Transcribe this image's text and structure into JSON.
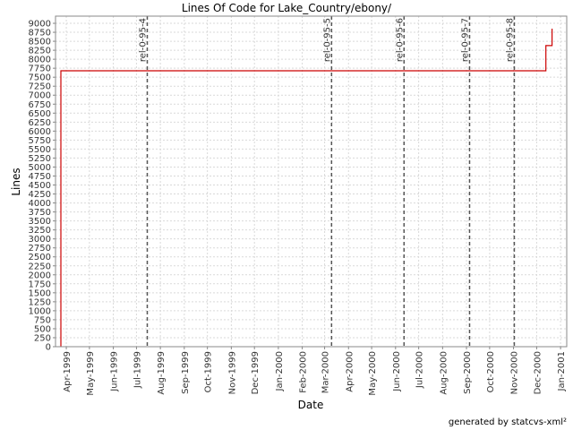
{
  "chart_data": {
    "type": "line",
    "title": "Lines Of Code for Lake_Country/ebony/",
    "xlabel": "Date",
    "ylabel": "Lines",
    "x_ticks": [
      "Apr-1999",
      "May-1999",
      "Jun-1999",
      "Jul-1999",
      "Aug-1999",
      "Sep-1999",
      "Oct-1999",
      "Nov-1999",
      "Dec-1999",
      "Jan-2000",
      "Feb-2000",
      "Mar-2000",
      "Apr-2000",
      "May-2000",
      "Jun-2000",
      "Jul-2000",
      "Aug-2000",
      "Sep-2000",
      "Oct-2000",
      "Nov-2000",
      "Dec-2000",
      "Jan-2001"
    ],
    "xlim": [
      "1999-03-18",
      "2001-01-09"
    ],
    "ylim": [
      0,
      9200
    ],
    "y_ticks": [
      0,
      250,
      500,
      750,
      1000,
      1250,
      1500,
      1750,
      2000,
      2250,
      2500,
      2750,
      3000,
      3250,
      3500,
      3750,
      4000,
      4250,
      4500,
      4750,
      5000,
      5250,
      5500,
      5750,
      6000,
      6250,
      6500,
      6750,
      7000,
      7250,
      7500,
      7750,
      8000,
      8250,
      8500,
      8750,
      9000
    ],
    "y_tick_labels": [
      "0",
      "250",
      "500",
      "750",
      "1000",
      "1250",
      "1500",
      "1750",
      "2000",
      "2250",
      "2500",
      "2750",
      "3000",
      "3250",
      "3500",
      "3750",
      "4000",
      "4250",
      "4500",
      "4750",
      "5000",
      "5250",
      "5500",
      "5750",
      "6000",
      "6250",
      "6500",
      "6750",
      "7000",
      "7250",
      "7500",
      "7750",
      "8000",
      "8250",
      "8500",
      "8750",
      "9000"
    ],
    "grid": true,
    "series": [
      {
        "color": "#cc0000",
        "step": true,
        "points": [
          {
            "x": "1999-03-25",
            "y": 0
          },
          {
            "x": "1999-03-25",
            "y": 7680
          },
          {
            "x": "2000-12-13",
            "y": 7680
          },
          {
            "x": "2000-12-13",
            "y": 8380
          },
          {
            "x": "2000-12-21",
            "y": 8380
          },
          {
            "x": "2000-12-21",
            "y": 8850
          }
        ]
      }
    ],
    "markers": [
      {
        "x": "1999-07-15",
        "label": "rel-0-95-4"
      },
      {
        "x": "2000-03-10",
        "label": "rel-0-95-5"
      },
      {
        "x": "2000-06-12",
        "label": "rel-0-95-6"
      },
      {
        "x": "2000-09-05",
        "label": "rel-0-95-7"
      },
      {
        "x": "2000-11-02",
        "label": "rel-0-95-8"
      }
    ]
  },
  "footer": "generated by statcvs-xml²",
  "colors": {
    "line": "#cc0000",
    "grid": "#d9d9d9",
    "marker": "#555555"
  }
}
